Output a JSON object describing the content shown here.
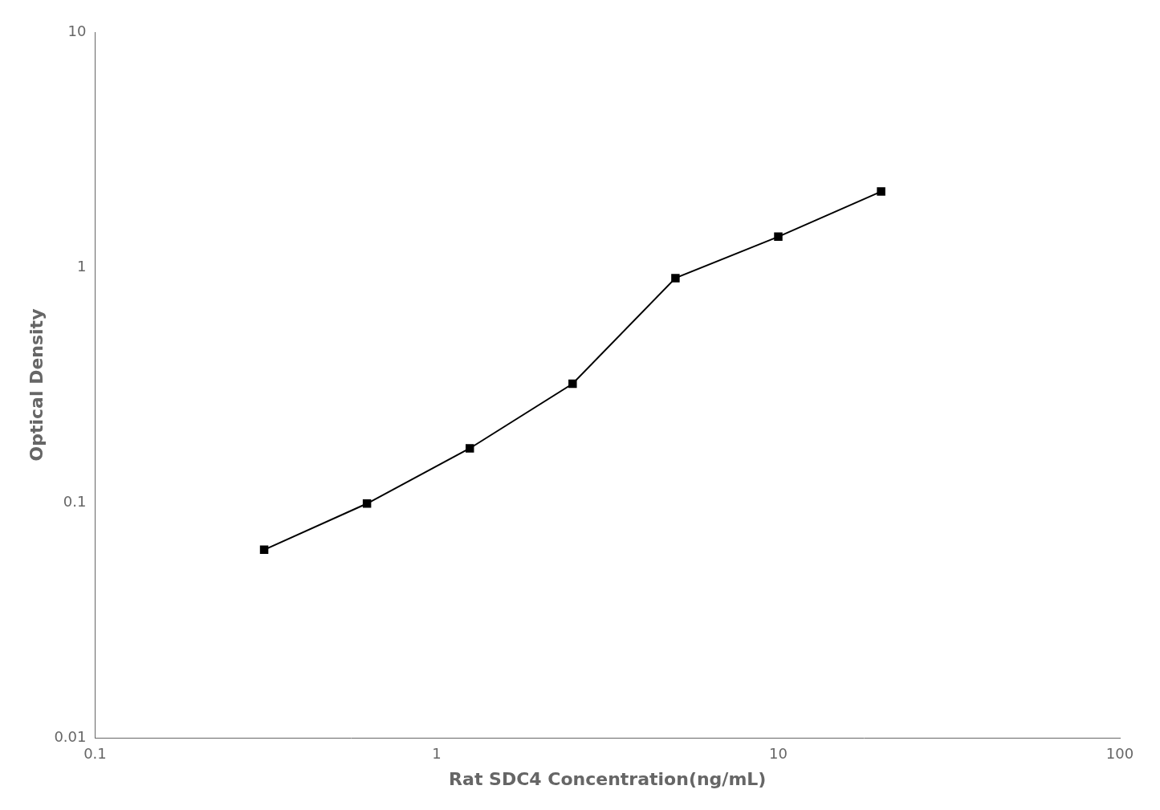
{
  "chart_data": {
    "type": "line",
    "x": [
      0.3125,
      0.625,
      1.25,
      2.5,
      5.0,
      10.0,
      20.0
    ],
    "values": [
      0.063,
      0.099,
      0.17,
      0.32,
      0.9,
      1.35,
      2.1
    ],
    "xlabel": "Rat SDC4 Concentration(ng/mL)",
    "ylabel": "Optical Density",
    "xlim": [
      0.1,
      100
    ],
    "ylim": [
      0.01,
      10
    ],
    "xticks": [
      0.1,
      1,
      10,
      100
    ],
    "yticks": [
      0.01,
      0.1,
      1,
      10
    ],
    "log": true,
    "grid": false,
    "color": "#000000",
    "marker": "square"
  }
}
